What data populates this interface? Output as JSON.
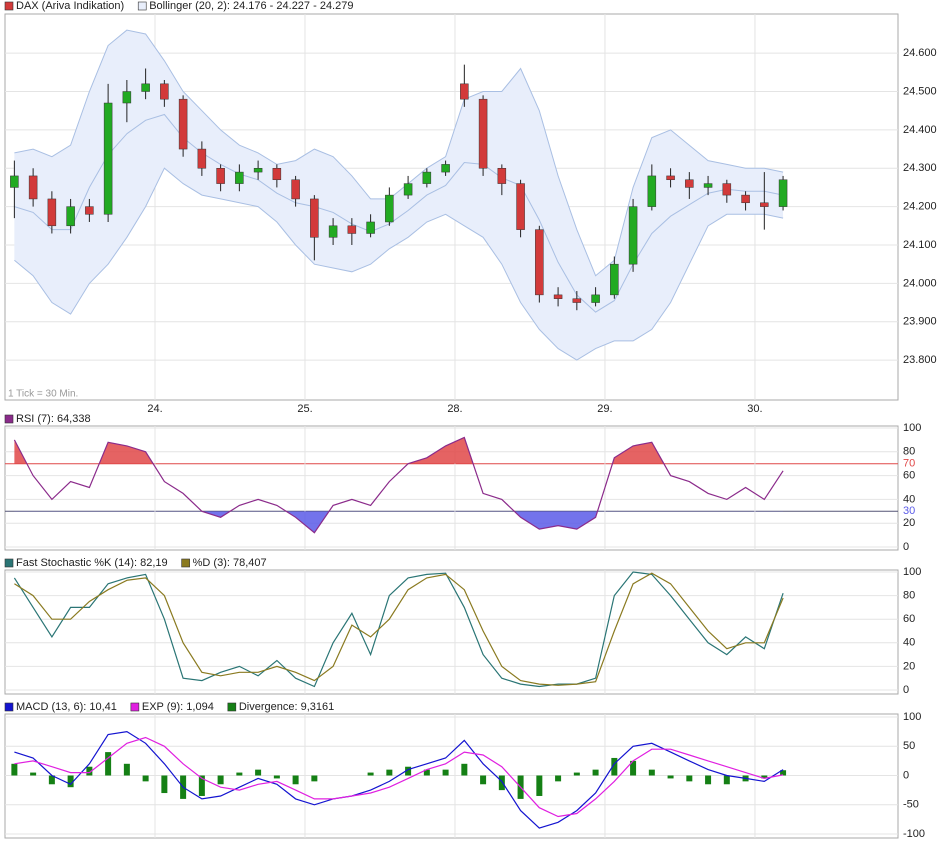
{
  "chart_data": [
    {
      "type": "candlestick",
      "name": "DAX (Ariva Indikation)",
      "up_color": "#22aa22",
      "down_color": "#d23a3a",
      "wick_color": "#222222",
      "annotation": "1 Tick = 30 Min.",
      "x": [
        0,
        1,
        2,
        3,
        4,
        5,
        6,
        7,
        8,
        9,
        10,
        11,
        12,
        13,
        14,
        15,
        16,
        17,
        18,
        19,
        20,
        21,
        22,
        23,
        24,
        25,
        26,
        27,
        28,
        29,
        30,
        31,
        32,
        33,
        34,
        35,
        36,
        37,
        38,
        39,
        40,
        41
      ],
      "open": [
        24250,
        24280,
        24220,
        24150,
        24200,
        24180,
        24470,
        24500,
        24520,
        24480,
        24350,
        24300,
        24260,
        24290,
        24300,
        24270,
        24220,
        24120,
        24150,
        24130,
        24160,
        24230,
        24260,
        24290,
        24520,
        24480,
        24300,
        24260,
        24140,
        23970,
        23960,
        23950,
        23970,
        24050,
        24200,
        24280,
        24270,
        24250,
        24260,
        24230,
        24210,
        24200
      ],
      "high": [
        24320,
        24300,
        24240,
        24220,
        24220,
        24520,
        24530,
        24560,
        24530,
        24490,
        24370,
        24310,
        24310,
        24320,
        24310,
        24280,
        24230,
        24170,
        24170,
        24180,
        24250,
        24280,
        24300,
        24320,
        24570,
        24490,
        24310,
        24270,
        24150,
        23990,
        23980,
        23990,
        24070,
        24220,
        24310,
        24300,
        24290,
        24280,
        24270,
        24240,
        24290,
        24280
      ],
      "low": [
        24170,
        24200,
        24130,
        24130,
        24160,
        24160,
        24420,
        24480,
        24460,
        24330,
        24280,
        24240,
        24240,
        24270,
        24250,
        24200,
        24060,
        24100,
        24100,
        24120,
        24150,
        24220,
        24250,
        24280,
        24460,
        24280,
        24230,
        24120,
        23950,
        23940,
        23930,
        23940,
        23960,
        24030,
        24190,
        24250,
        24220,
        24230,
        24210,
        24190,
        24140,
        24190
      ],
      "close": [
        24280,
        24220,
        24150,
        24200,
        24180,
        24470,
        24500,
        24520,
        24480,
        24350,
        24300,
        24260,
        24290,
        24300,
        24270,
        24220,
        24120,
        24150,
        24130,
        24160,
        24230,
        24260,
        24290,
        24310,
        24480,
        24300,
        24260,
        24140,
        23970,
        23960,
        23950,
        23970,
        24050,
        24200,
        24280,
        24270,
        24250,
        24260,
        24230,
        24210,
        24200,
        24270
      ],
      "bands": {
        "name": "Bollinger (20, 2): 24.176 - 24.227 - 24.279",
        "color": "#a9bfe3",
        "fill": "#e8eefb",
        "upper": [
          24340,
          24350,
          24330,
          24360,
          24500,
          24620,
          24660,
          24650,
          24580,
          24500,
          24450,
          24400,
          24360,
          24340,
          24310,
          24320,
          24350,
          24330,
          24280,
          24220,
          24220,
          24260,
          24300,
          24330,
          24480,
          24500,
          24500,
          24560,
          24450,
          24280,
          24140,
          24020,
          24060,
          24250,
          24380,
          24400,
          24360,
          24320,
          24310,
          24300,
          24300,
          24290
        ],
        "middle": [
          24200,
          24185,
          24140,
          24140,
          24250,
          24335,
          24390,
          24425,
          24440,
          24380,
          24340,
          24310,
          24285,
          24270,
          24235,
          24210,
          24200,
          24185,
          24155,
          24135,
          24155,
          24190,
          24230,
          24255,
          24315,
          24310,
          24275,
          24255,
          24165,
          24055,
          23970,
          23925,
          23955,
          24050,
          24130,
          24175,
          24205,
          24235,
          24245,
          24240,
          24240,
          24230
        ],
        "lower": [
          24060,
          24020,
          23950,
          23920,
          24000,
          24050,
          24120,
          24200,
          24300,
          24260,
          24230,
          24220,
          24210,
          24200,
          24160,
          24100,
          24050,
          24040,
          24030,
          24050,
          24090,
          24120,
          24160,
          24180,
          24150,
          24120,
          24050,
          23950,
          23880,
          23830,
          23800,
          23830,
          23850,
          23850,
          23880,
          23950,
          24050,
          24150,
          24180,
          24180,
          24180,
          24170
        ]
      },
      "xlim": [
        -0.5,
        47.13
      ],
      "xticks": [
        {
          "value": 7.5,
          "label": "24."
        },
        {
          "value": 15.5,
          "label": "25."
        },
        {
          "value": 23.5,
          "label": "28."
        },
        {
          "value": 31.5,
          "label": "29."
        },
        {
          "value": 39.5,
          "label": "30."
        }
      ],
      "ylim": [
        23696,
        24702
      ],
      "yticks": [
        {
          "value": 23800,
          "label": "23.800"
        },
        {
          "value": 23900,
          "label": "23.900"
        },
        {
          "value": 24000,
          "label": "24.000"
        },
        {
          "value": 24100,
          "label": "24.100"
        },
        {
          "value": 24200,
          "label": "24.200"
        },
        {
          "value": 24300,
          "label": "24.300"
        },
        {
          "value": 24400,
          "label": "24.400"
        },
        {
          "value": 24500,
          "label": "24.500"
        },
        {
          "value": 24600,
          "label": "24.600"
        }
      ],
      "grid": true
    },
    {
      "type": "line",
      "upper_level": 70,
      "lower_level": 30,
      "upper_color": "#e04848",
      "lower_color": "#5a5ae8",
      "x": [
        0,
        1,
        2,
        3,
        4,
        5,
        6,
        7,
        8,
        9,
        10,
        11,
        12,
        13,
        14,
        15,
        16,
        17,
        18,
        19,
        20,
        21,
        22,
        23,
        24,
        25,
        26,
        27,
        28,
        29,
        30,
        31,
        32,
        33,
        34,
        35,
        36,
        37,
        38,
        39,
        40,
        41
      ],
      "series": [
        {
          "name": "RSI (7): 64,338",
          "color": "#8b2b8b",
          "values": [
            90,
            60,
            40,
            55,
            50,
            88,
            85,
            80,
            55,
            45,
            30,
            25,
            35,
            40,
            35,
            25,
            12,
            35,
            40,
            35,
            55,
            70,
            75,
            85,
            92,
            45,
            40,
            25,
            15,
            18,
            15,
            25,
            75,
            85,
            88,
            60,
            55,
            45,
            40,
            50,
            40,
            64
          ]
        }
      ],
      "xlim": [
        -0.5,
        47.13
      ],
      "ylim": [
        0,
        100
      ],
      "yticks": [
        0,
        20,
        30,
        40,
        60,
        70,
        80,
        100
      ],
      "grid": true
    },
    {
      "type": "line",
      "x": [
        0,
        1,
        2,
        3,
        4,
        5,
        6,
        7,
        8,
        9,
        10,
        11,
        12,
        13,
        14,
        15,
        16,
        17,
        18,
        19,
        20,
        21,
        22,
        23,
        24,
        25,
        26,
        27,
        28,
        29,
        30,
        31,
        32,
        33,
        34,
        35,
        36,
        37,
        38,
        39,
        40,
        41
      ],
      "series": [
        {
          "name": "Fast Stochastic %K (14): 82,19",
          "color": "#2a7575",
          "values": [
            95,
            70,
            45,
            70,
            70,
            90,
            95,
            98,
            60,
            10,
            8,
            15,
            20,
            12,
            25,
            10,
            3,
            40,
            65,
            30,
            80,
            95,
            98,
            99,
            70,
            30,
            10,
            5,
            3,
            5,
            5,
            10,
            80,
            100,
            98,
            80,
            60,
            40,
            30,
            45,
            35,
            82
          ]
        },
        {
          "name": "%D (3): 78,407",
          "color": "#8a7a20",
          "values": [
            90,
            80,
            60,
            60,
            75,
            85,
            93,
            95,
            80,
            40,
            15,
            12,
            15,
            15,
            20,
            15,
            8,
            20,
            55,
            45,
            60,
            85,
            95,
            98,
            85,
            50,
            20,
            8,
            5,
            4,
            5,
            7,
            50,
            90,
            99,
            90,
            70,
            50,
            35,
            40,
            40,
            78
          ]
        }
      ],
      "xlim": [
        -0.5,
        47.13
      ],
      "ylim": [
        0,
        100
      ],
      "yticks": [
        0,
        20,
        40,
        60,
        80,
        100
      ],
      "grid": true
    },
    {
      "type": "combo",
      "x": [
        0,
        1,
        2,
        3,
        4,
        5,
        6,
        7,
        8,
        9,
        10,
        11,
        12,
        13,
        14,
        15,
        16,
        17,
        18,
        19,
        20,
        21,
        22,
        23,
        24,
        25,
        26,
        27,
        28,
        29,
        30,
        31,
        32,
        33,
        34,
        35,
        36,
        37,
        38,
        39,
        40,
        41
      ],
      "series": [
        {
          "name": "MACD (13, 6): 10,41",
          "color": "#1414d0",
          "kind": "line",
          "values": [
            40,
            30,
            0,
            -15,
            20,
            70,
            75,
            55,
            20,
            -20,
            -40,
            -35,
            -20,
            -5,
            -15,
            -40,
            -50,
            -40,
            -35,
            -25,
            -10,
            10,
            20,
            30,
            60,
            20,
            -10,
            -60,
            -90,
            -80,
            -60,
            -30,
            20,
            50,
            55,
            40,
            25,
            10,
            0,
            -5,
            -10,
            10
          ]
        },
        {
          "name": "EXP (9): 1,094",
          "color": "#e020e0",
          "kind": "line",
          "values": [
            20,
            25,
            15,
            5,
            5,
            30,
            55,
            65,
            50,
            20,
            -5,
            -20,
            -25,
            -15,
            -10,
            -25,
            -40,
            -40,
            -35,
            -30,
            -20,
            -5,
            10,
            20,
            40,
            35,
            15,
            -20,
            -55,
            -70,
            -65,
            -40,
            -10,
            25,
            45,
            45,
            35,
            25,
            15,
            5,
            -5,
            1
          ]
        },
        {
          "name": "Divergence: 9,3161",
          "color": "#158015",
          "kind": "bar",
          "values": [
            20,
            5,
            -15,
            -20,
            15,
            40,
            20,
            -10,
            -30,
            -40,
            -35,
            -15,
            5,
            10,
            -5,
            -15,
            -10,
            0,
            0,
            5,
            10,
            15,
            10,
            10,
            20,
            -15,
            -25,
            -40,
            -35,
            -10,
            5,
            10,
            30,
            25,
            10,
            -5,
            -10,
            -15,
            -15,
            -10,
            -5,
            9
          ]
        }
      ],
      "xlim": [
        -0.5,
        47.13
      ],
      "ylim": [
        -100,
        100
      ],
      "yticks": [
        -100,
        -50,
        0,
        50,
        100
      ],
      "grid": true
    }
  ]
}
